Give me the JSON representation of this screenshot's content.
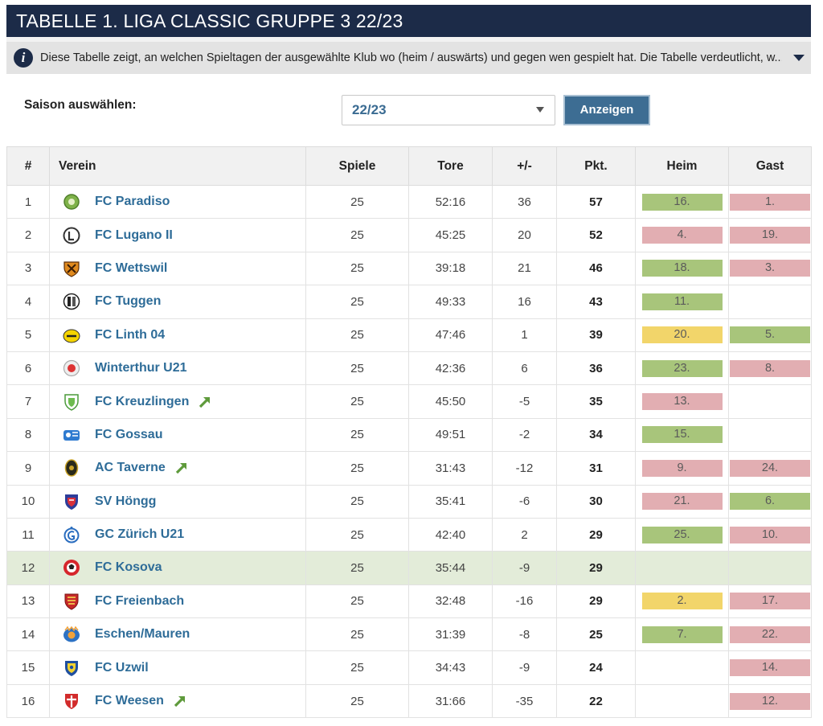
{
  "title": "TABELLE 1. LIGA CLASSIC GRUPPE 3 22/23",
  "info": {
    "text": "Diese Tabelle zeigt, an welchen Spieltagen der ausgewählte Klub wo (heim / auswärts) und gegen wen gespielt hat. Die Tabelle verdeutlicht, w..."
  },
  "season": {
    "label": "Saison auswählen:",
    "selected": "22/23",
    "button": "Anzeigen"
  },
  "colors": {
    "header": "#1c2b48",
    "win": "#a8c57b",
    "loss": "#e2aeb2",
    "draw": "#f2d56a",
    "highlight_row": "#e3ecd9",
    "link": "#2e6c98"
  },
  "table": {
    "headers": [
      "#",
      "Verein",
      "Spiele",
      "Tore",
      "+/-",
      "Pkt.",
      "Heim",
      "Gast"
    ],
    "rows": [
      {
        "rank": "1",
        "club": "FC Paradiso",
        "games": "25",
        "goals": "52:16",
        "diff": "36",
        "pts": "57",
        "home": "16.",
        "home_result": "win",
        "away": "1.",
        "away_result": "loss",
        "promoted": false,
        "logo": "green-crest-icon"
      },
      {
        "rank": "2",
        "club": "FC Lugano II",
        "games": "25",
        "goals": "45:25",
        "diff": "20",
        "pts": "52",
        "home": "4.",
        "home_result": "loss",
        "away": "19.",
        "away_result": "loss",
        "promoted": false,
        "logo": "grey-circle-crest-icon"
      },
      {
        "rank": "3",
        "club": "FC Wettswil",
        "games": "25",
        "goals": "39:18",
        "diff": "21",
        "pts": "46",
        "home": "18.",
        "home_result": "win",
        "away": "3.",
        "away_result": "loss",
        "promoted": false,
        "logo": "orange-shield-crest-icon"
      },
      {
        "rank": "4",
        "club": "FC Tuggen",
        "games": "25",
        "goals": "49:33",
        "diff": "16",
        "pts": "43",
        "home": "11.",
        "home_result": "win",
        "away": "",
        "away_result": "none",
        "promoted": false,
        "logo": "black-white-crest-icon"
      },
      {
        "rank": "5",
        "club": "FC Linth 04",
        "games": "25",
        "goals": "47:46",
        "diff": "1",
        "pts": "39",
        "home": "20.",
        "home_result": "draw",
        "away": "5.",
        "away_result": "win",
        "promoted": false,
        "logo": "yellow-crest-icon"
      },
      {
        "rank": "6",
        "club": "Winterthur U21",
        "games": "25",
        "goals": "42:36",
        "diff": "6",
        "pts": "36",
        "home": "23.",
        "home_result": "win",
        "away": "8.",
        "away_result": "loss",
        "promoted": false,
        "logo": "red-white-crest-icon"
      },
      {
        "rank": "7",
        "club": "FC Kreuzlingen",
        "games": "25",
        "goals": "45:50",
        "diff": "-5",
        "pts": "35",
        "home": "13.",
        "home_result": "loss",
        "away": "",
        "away_result": "none",
        "promoted": true,
        "logo": "green-white-shield-crest-icon"
      },
      {
        "rank": "8",
        "club": "FC Gossau",
        "games": "25",
        "goals": "49:51",
        "diff": "-2",
        "pts": "34",
        "home": "15.",
        "home_result": "win",
        "away": "",
        "away_result": "none",
        "promoted": false,
        "logo": "blue-crest-icon"
      },
      {
        "rank": "9",
        "club": "AC Taverne",
        "games": "25",
        "goals": "31:43",
        "diff": "-12",
        "pts": "31",
        "home": "9.",
        "home_result": "loss",
        "away": "24.",
        "away_result": "loss",
        "promoted": true,
        "logo": "dark-oval-crest-icon"
      },
      {
        "rank": "10",
        "club": "SV Höngg",
        "games": "25",
        "goals": "35:41",
        "diff": "-6",
        "pts": "30",
        "home": "21.",
        "home_result": "loss",
        "away": "6.",
        "away_result": "win",
        "promoted": false,
        "logo": "blue-red-shield-crest-icon"
      },
      {
        "rank": "11",
        "club": "GC Zürich U21",
        "games": "25",
        "goals": "42:40",
        "diff": "2",
        "pts": "29",
        "home": "25.",
        "home_result": "win",
        "away": "10.",
        "away_result": "loss",
        "promoted": false,
        "logo": "blue-white-crest-icon"
      },
      {
        "rank": "12",
        "club": "FC Kosova",
        "games": "25",
        "goals": "35:44",
        "diff": "-9",
        "pts": "29",
        "home": "",
        "home_result": "none",
        "away": "",
        "away_result": "none",
        "promoted": false,
        "logo": "red-ball-crest-icon",
        "selected": true
      },
      {
        "rank": "13",
        "club": "FC Freienbach",
        "games": "25",
        "goals": "32:48",
        "diff": "-16",
        "pts": "29",
        "home": "2.",
        "home_result": "draw",
        "away": "17.",
        "away_result": "loss",
        "promoted": false,
        "logo": "red-gold-shield-crest-icon"
      },
      {
        "rank": "14",
        "club": "Eschen/Mauren",
        "games": "25",
        "goals": "31:39",
        "diff": "-8",
        "pts": "25",
        "home": "7.",
        "home_result": "win",
        "away": "22.",
        "away_result": "loss",
        "promoted": false,
        "logo": "blue-orange-crest-icon"
      },
      {
        "rank": "15",
        "club": "FC Uzwil",
        "games": "25",
        "goals": "34:43",
        "diff": "-9",
        "pts": "24",
        "home": "",
        "home_result": "none",
        "away": "14.",
        "away_result": "loss",
        "promoted": false,
        "logo": "blue-yellow-shield-crest-icon"
      },
      {
        "rank": "16",
        "club": "FC Weesen",
        "games": "25",
        "goals": "31:66",
        "diff": "-35",
        "pts": "22",
        "home": "",
        "home_result": "none",
        "away": "12.",
        "away_result": "loss",
        "promoted": true,
        "logo": "red-white-shield-crest-icon"
      }
    ]
  }
}
